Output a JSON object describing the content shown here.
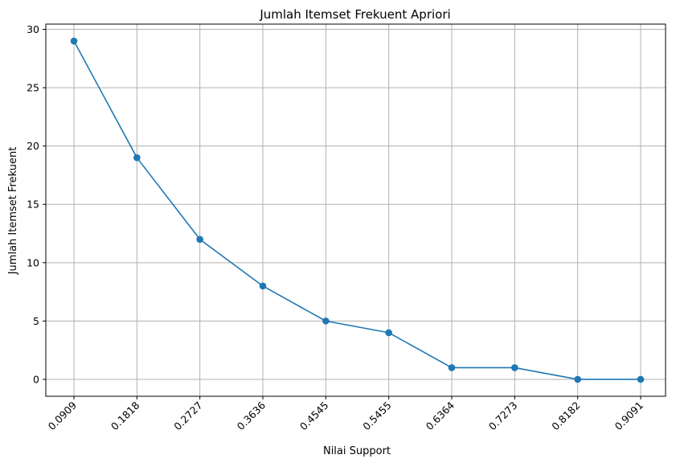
{
  "chart_data": {
    "type": "line",
    "title": "Jumlah Itemset Frekuent Apriori",
    "xlabel": "Nilai Support",
    "ylabel": "Jumlah Itemset Frekuent",
    "categories": [
      "0.0909",
      "0.1818",
      "0.2727",
      "0.3636",
      "0.4545",
      "0.5455",
      "0.6364",
      "0.7273",
      "0.8182",
      "0.9091"
    ],
    "series": [
      {
        "values": [
          29,
          19,
          12,
          8,
          5,
          4,
          1,
          1,
          0,
          0
        ],
        "color": "#1f77b4",
        "marker": "circle"
      }
    ],
    "ylim": [
      -1.45,
      30.45
    ],
    "yticks": [
      "0",
      "5",
      "10",
      "15",
      "20",
      "25",
      "30"
    ],
    "grid": true,
    "xtick_rotation": 45,
    "legend": false,
    "grid_color": "#b0b0b0",
    "axis_color": "#000000"
  }
}
